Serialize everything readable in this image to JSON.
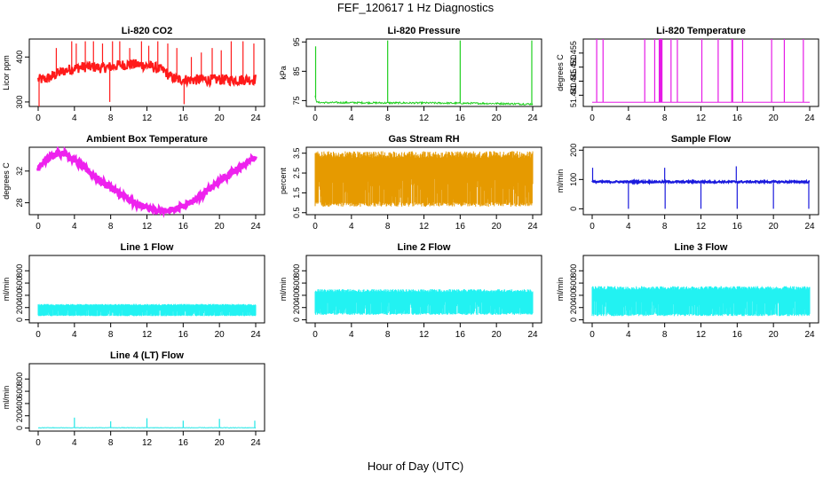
{
  "page": {
    "title": "FEF_120617  1 Hz Diagnostics",
    "x_caption": "Hour of Day (UTC)"
  },
  "chart_data": [
    {
      "type": "line",
      "title": "Li-820 CO2",
      "ylabel": "Licor ppm",
      "color": "#ff1a1a",
      "xlim": [
        0,
        24
      ],
      "ylim": [
        290,
        440
      ],
      "yticks": [
        "300",
        "400"
      ],
      "ytick_values": [
        300,
        400
      ],
      "xticks": [
        0,
        4,
        8,
        12,
        16,
        20,
        24
      ],
      "style": "noisy",
      "series": [
        {
          "x": [
            0,
            0.5,
            1,
            1.5,
            2,
            3,
            4,
            5,
            6,
            7,
            8,
            9,
            10,
            11,
            12,
            13,
            14,
            14.5,
            15,
            15.5,
            16,
            17,
            18,
            19,
            20,
            21,
            22,
            23,
            24
          ],
          "values": [
            350,
            350,
            352,
            356,
            362,
            370,
            375,
            378,
            378,
            376,
            378,
            382,
            384,
            383,
            381,
            376,
            368,
            358,
            352,
            350,
            350,
            349,
            350,
            349,
            350,
            349,
            349,
            350,
            350
          ]
        }
      ],
      "noise": 12,
      "spikes": [
        {
          "x": 0.1,
          "top": 290
        },
        {
          "x": 2.0,
          "top": 420
        },
        {
          "x": 3.7,
          "top": 435
        },
        {
          "x": 4.2,
          "top": 430
        },
        {
          "x": 5.2,
          "top": 435
        },
        {
          "x": 6.1,
          "top": 435
        },
        {
          "x": 7.1,
          "top": 430
        },
        {
          "x": 7.9,
          "top": 300
        },
        {
          "x": 8.2,
          "top": 435
        },
        {
          "x": 9.0,
          "top": 435
        },
        {
          "x": 10.1,
          "top": 420
        },
        {
          "x": 11.4,
          "top": 435
        },
        {
          "x": 12.2,
          "top": 425
        },
        {
          "x": 13.2,
          "top": 435
        },
        {
          "x": 14.3,
          "top": 430
        },
        {
          "x": 15.3,
          "top": 420
        },
        {
          "x": 16.1,
          "top": 295
        },
        {
          "x": 16.9,
          "top": 400
        },
        {
          "x": 18.0,
          "top": 410
        },
        {
          "x": 19.2,
          "top": 420
        },
        {
          "x": 20.2,
          "top": 415
        },
        {
          "x": 21.3,
          "top": 435
        },
        {
          "x": 22.6,
          "top": 435
        },
        {
          "x": 23.8,
          "top": 430
        }
      ]
    },
    {
      "type": "line",
      "title": "Li-820 Pressure",
      "ylabel": "kPa",
      "color": "#1fcf1f",
      "xlim": [
        0,
        24
      ],
      "ylim": [
        73,
        96
      ],
      "yticks": [
        "75",
        "85",
        "95"
      ],
      "ytick_values": [
        75,
        85,
        95
      ],
      "xticks": [
        0,
        4,
        8,
        12,
        16,
        20,
        24
      ],
      "style": "flat",
      "series": [
        {
          "x": [
            0,
            0.2,
            1,
            4,
            8,
            12,
            16,
            20,
            23.9,
            24
          ],
          "values": [
            76.5,
            74.4,
            74.3,
            74.3,
            74.2,
            74.2,
            74.1,
            74.0,
            73.8,
            73.8
          ]
        }
      ],
      "noise": 0.3,
      "spikes": [
        {
          "x": 0.05,
          "top": 93.5
        },
        {
          "x": 8.0,
          "top": 95.5
        },
        {
          "x": 16.0,
          "top": 95.5
        },
        {
          "x": 23.9,
          "top": 95.5
        }
      ]
    },
    {
      "type": "line",
      "title": "Li-820 Temperature",
      "ylabel": "degrees C",
      "color": "#e61ae6",
      "xlim": [
        0,
        24
      ],
      "ylim": [
        51.436,
        51.46
      ],
      "yticks": [
        "51.440",
        "51.445",
        "51.450",
        "51.455"
      ],
      "ytick_values": [
        51.44,
        51.445,
        51.45,
        51.455
      ],
      "xticks": [
        0,
        4,
        8,
        12,
        16,
        20,
        24
      ],
      "style": "flat",
      "series": [
        {
          "x": [
            0,
            24
          ],
          "values": [
            51.4375,
            51.4375
          ]
        }
      ],
      "noise": 0,
      "spikes": [
        {
          "x": 0.5,
          "top": 51.46
        },
        {
          "x": 1.2,
          "top": 51.46
        },
        {
          "x": 5.8,
          "top": 51.46
        },
        {
          "x": 6.9,
          "top": 51.46
        },
        {
          "x": 7.4,
          "top": 51.46
        },
        {
          "x": 7.5,
          "top": 51.46
        },
        {
          "x": 7.6,
          "top": 51.46
        },
        {
          "x": 7.7,
          "top": 51.46
        },
        {
          "x": 8.7,
          "top": 51.46
        },
        {
          "x": 9.4,
          "top": 51.46
        },
        {
          "x": 12.1,
          "top": 51.46
        },
        {
          "x": 13.9,
          "top": 51.46
        },
        {
          "x": 15.4,
          "top": 51.46
        },
        {
          "x": 15.5,
          "top": 51.46
        },
        {
          "x": 16.6,
          "top": 51.46
        },
        {
          "x": 19.8,
          "top": 51.46
        },
        {
          "x": 21.2,
          "top": 51.46
        },
        {
          "x": 23.3,
          "top": 51.46
        }
      ]
    },
    {
      "type": "line",
      "title": "Ambient Box Temperature",
      "ylabel": "degrees C",
      "color": "#ee22ee",
      "xlim": [
        0,
        24
      ],
      "ylim": [
        26.5,
        35
      ],
      "yticks": [
        "28",
        "32"
      ],
      "ytick_values": [
        28,
        32
      ],
      "xticks": [
        0,
        4,
        8,
        12,
        16,
        20,
        24
      ],
      "style": "thick",
      "series": [
        {
          "x": [
            0,
            1,
            2,
            3,
            4,
            5,
            6,
            7,
            8,
            9,
            10,
            11,
            12,
            13,
            14,
            15,
            16,
            17,
            18,
            19,
            20,
            21,
            22,
            23,
            24
          ],
          "values": [
            32.3,
            33.5,
            34.3,
            34.2,
            33.4,
            32.5,
            31.6,
            30.7,
            29.9,
            29.1,
            28.4,
            27.8,
            27.3,
            27.1,
            27.0,
            27.2,
            27.6,
            28.2,
            28.9,
            29.8,
            30.7,
            31.5,
            32.3,
            33.0,
            33.7
          ]
        }
      ],
      "noise": 0.35,
      "spikes": []
    },
    {
      "type": "line",
      "title": "Gas Stream RH",
      "ylabel": "percent",
      "color": "#e69a00",
      "xlim": [
        0,
        24
      ],
      "ylim": [
        0.4,
        3.8
      ],
      "yticks": [
        "0.5",
        "1.5",
        "2.5",
        "3.5"
      ],
      "ytick_values": [
        0.5,
        1.5,
        2.5,
        3.5
      ],
      "xticks": [
        0,
        4,
        8,
        12,
        16,
        20,
        24
      ],
      "style": "band",
      "band": [
        0.8,
        3.6
      ],
      "series": [
        {
          "x": [
            0,
            24
          ],
          "values": [
            0.8,
            3.6
          ]
        }
      ],
      "noise": 0,
      "spikes": []
    },
    {
      "type": "line",
      "title": "Sample Flow",
      "ylabel": "ml/min",
      "color": "#1a1add",
      "xlim": [
        0,
        24
      ],
      "ylim": [
        -20,
        210
      ],
      "yticks": [
        "0",
        "100",
        "200"
      ],
      "ytick_values": [
        0,
        100,
        200
      ],
      "xticks": [
        0,
        4,
        8,
        12,
        16,
        20,
        24
      ],
      "style": "noisy",
      "series": [
        {
          "x": [
            0,
            24
          ],
          "values": [
            92,
            92
          ]
        }
      ],
      "noise": 3,
      "spikes": [
        {
          "x": 0.05,
          "top": 140
        },
        {
          "x": 4.0,
          "top": 0
        },
        {
          "x": 8.0,
          "top": 140
        },
        {
          "x": 8.05,
          "top": 0
        },
        {
          "x": 12.0,
          "top": 0
        },
        {
          "x": 15.9,
          "top": 145
        },
        {
          "x": 16.0,
          "top": 0
        },
        {
          "x": 20.0,
          "top": 0
        },
        {
          "x": 23.9,
          "top": 0
        }
      ]
    },
    {
      "type": "line",
      "title": "Line 1 Flow",
      "ylabel": "ml/min",
      "color": "#22f2f2",
      "xlim": [
        0,
        24
      ],
      "ylim": [
        -50,
        1050
      ],
      "yticks": [
        "0",
        "200",
        "400",
        "600",
        "800"
      ],
      "ytick_values": [
        0,
        200,
        400,
        600,
        800
      ],
      "xticks": [
        0,
        4,
        8,
        12,
        16,
        20,
        24
      ],
      "style": "band",
      "band": [
        60,
        260
      ],
      "series": [
        {
          "x": [
            0,
            24
          ],
          "values": [
            60,
            260
          ]
        }
      ],
      "noise": 0,
      "spikes": []
    },
    {
      "type": "line",
      "title": "Line 2 Flow",
      "ylabel": "ml/min",
      "color": "#22f2f2",
      "xlim": [
        0,
        24
      ],
      "ylim": [
        -50,
        1050
      ],
      "yticks": [
        "0",
        "200",
        "400",
        "600",
        "800"
      ],
      "ytick_values": [
        0,
        200,
        400,
        600,
        800
      ],
      "xticks": [
        0,
        4,
        8,
        12,
        16,
        20,
        24
      ],
      "style": "band",
      "band": [
        80,
        500
      ],
      "series": [
        {
          "x": [
            0,
            24
          ],
          "values": [
            80,
            500
          ]
        }
      ],
      "noise": 0,
      "spikes": []
    },
    {
      "type": "line",
      "title": "Line 3 Flow",
      "ylabel": "ml/min",
      "color": "#22f2f2",
      "xlim": [
        0,
        24
      ],
      "ylim": [
        -50,
        1050
      ],
      "yticks": [
        "0",
        "200",
        "400",
        "600",
        "800"
      ],
      "ytick_values": [
        0,
        200,
        400,
        600,
        800
      ],
      "xticks": [
        0,
        4,
        8,
        12,
        16,
        20,
        24
      ],
      "style": "band",
      "band": [
        60,
        550
      ],
      "series": [
        {
          "x": [
            0,
            24
          ],
          "values": [
            60,
            550
          ]
        }
      ],
      "noise": 0,
      "spikes": []
    },
    {
      "type": "line",
      "title": "Line 4 (LT) Flow",
      "ylabel": "ml/min",
      "color": "#22e6e6",
      "xlim": [
        0,
        24
      ],
      "ylim": [
        -50,
        1050
      ],
      "yticks": [
        "0",
        "200",
        "400",
        "600",
        "800"
      ],
      "ytick_values": [
        0,
        200,
        400,
        600,
        800
      ],
      "xticks": [
        0,
        4,
        8,
        12,
        16,
        20,
        24
      ],
      "style": "flat",
      "series": [
        {
          "x": [
            0,
            24
          ],
          "values": [
            5,
            5
          ]
        }
      ],
      "noise": 4,
      "spikes": [
        {
          "x": 4.0,
          "top": 170
        },
        {
          "x": 8.0,
          "top": 110
        },
        {
          "x": 12.0,
          "top": 160
        },
        {
          "x": 16.0,
          "top": 120
        },
        {
          "x": 20.0,
          "top": 150
        },
        {
          "x": 23.9,
          "top": 120
        }
      ]
    }
  ]
}
